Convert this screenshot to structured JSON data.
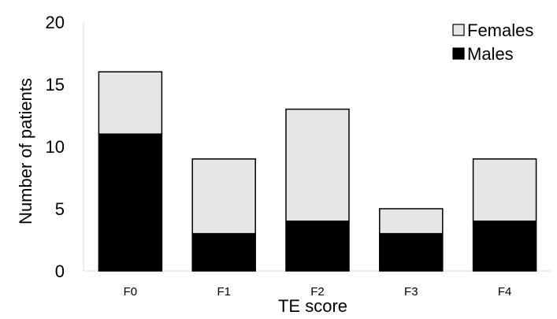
{
  "chart_data": {
    "type": "bar",
    "stacked": true,
    "categories": [
      "F0",
      "F1",
      "F2",
      "F3",
      "F4"
    ],
    "series": [
      {
        "name": "Males",
        "values": [
          11,
          3,
          4,
          3,
          4
        ],
        "color": "#000000"
      },
      {
        "name": "Females",
        "values": [
          5,
          6,
          9,
          2,
          5
        ],
        "color": "#e6e6e6"
      }
    ],
    "xlabel": "TE score",
    "ylabel": "Number of patients",
    "ylim": [
      0,
      20
    ],
    "yticks": [
      0,
      5,
      10,
      15,
      20
    ],
    "grid": false,
    "legend_position": "top-right",
    "legend_order": [
      "Females",
      "Males"
    ]
  }
}
